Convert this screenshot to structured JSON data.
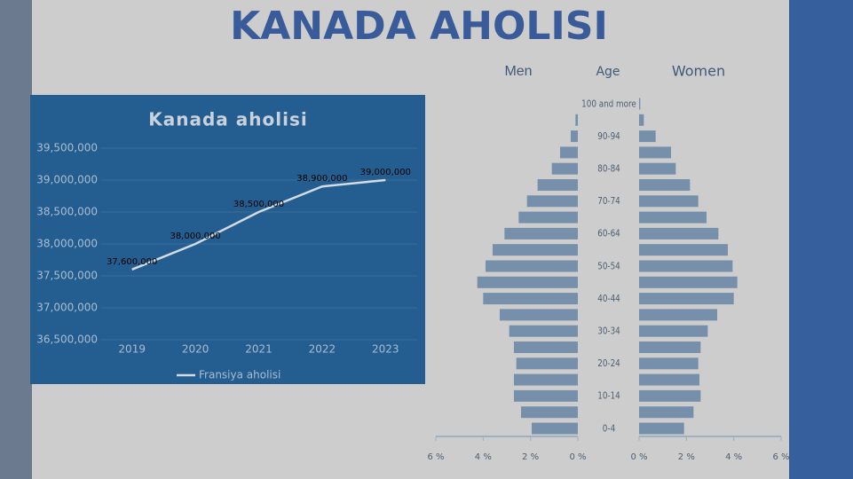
{
  "title": "KANADA AHOLISI",
  "chart_data": [
    {
      "type": "line",
      "title": "Kanada aholisi",
      "categories": [
        "2019",
        "2020",
        "2021",
        "2022",
        "2023"
      ],
      "series": [
        {
          "name": "Fransiya aholisi",
          "color": "#d3dbe4",
          "values": [
            37600000,
            38000000,
            38500000,
            38900000,
            39000000
          ],
          "value_labels": [
            "37,600,000",
            "38,000,000",
            "38,500,000",
            "38,900,000",
            "39,000,000"
          ]
        }
      ],
      "ylim": [
        36500000,
        39500000
      ],
      "yticks": [
        {
          "value": 36500000,
          "label": "36,500,000"
        },
        {
          "value": 37000000,
          "label": "37,000,000"
        },
        {
          "value": 37500000,
          "label": "37,500,000"
        },
        {
          "value": 38000000,
          "label": "38,000,000"
        },
        {
          "value": 38500000,
          "label": "38,500,000"
        },
        {
          "value": 39000000,
          "label": "39,000,000"
        },
        {
          "value": 39500000,
          "label": "39,500,000"
        }
      ],
      "grid": true,
      "legend": "bottom"
    },
    {
      "type": "pyramid",
      "category_label": "Age",
      "categories": [
        "0-4",
        null,
        "10-14",
        null,
        "20-24",
        null,
        "30-34",
        null,
        "40-44",
        null,
        "50-54",
        null,
        "60-64",
        null,
        "70-74",
        null,
        "80-84",
        null,
        "90-94",
        null,
        "100 and more"
      ],
      "series": [
        {
          "name": "Men",
          "color": "#7690ab",
          "values": [
            1.95,
            2.4,
            2.7,
            2.7,
            2.6,
            2.7,
            2.9,
            3.3,
            4.0,
            4.25,
            3.9,
            3.6,
            3.1,
            2.5,
            2.15,
            1.7,
            1.1,
            0.75,
            0.3,
            0.1,
            0
          ]
        },
        {
          "name": "Women",
          "color": "#7690ab",
          "values": [
            1.9,
            2.3,
            2.6,
            2.55,
            2.5,
            2.6,
            2.9,
            3.3,
            4.0,
            4.15,
            3.95,
            3.75,
            3.35,
            2.85,
            2.5,
            2.15,
            1.55,
            1.35,
            0.7,
            0.2,
            0.05
          ]
        }
      ],
      "xlim": [
        0,
        6
      ],
      "xticks": [
        {
          "value": 0,
          "label": "0 %"
        },
        {
          "value": 2,
          "label": "2 %"
        },
        {
          "value": 4,
          "label": "4 %"
        },
        {
          "value": 6,
          "label": "6 %"
        }
      ]
    }
  ]
}
